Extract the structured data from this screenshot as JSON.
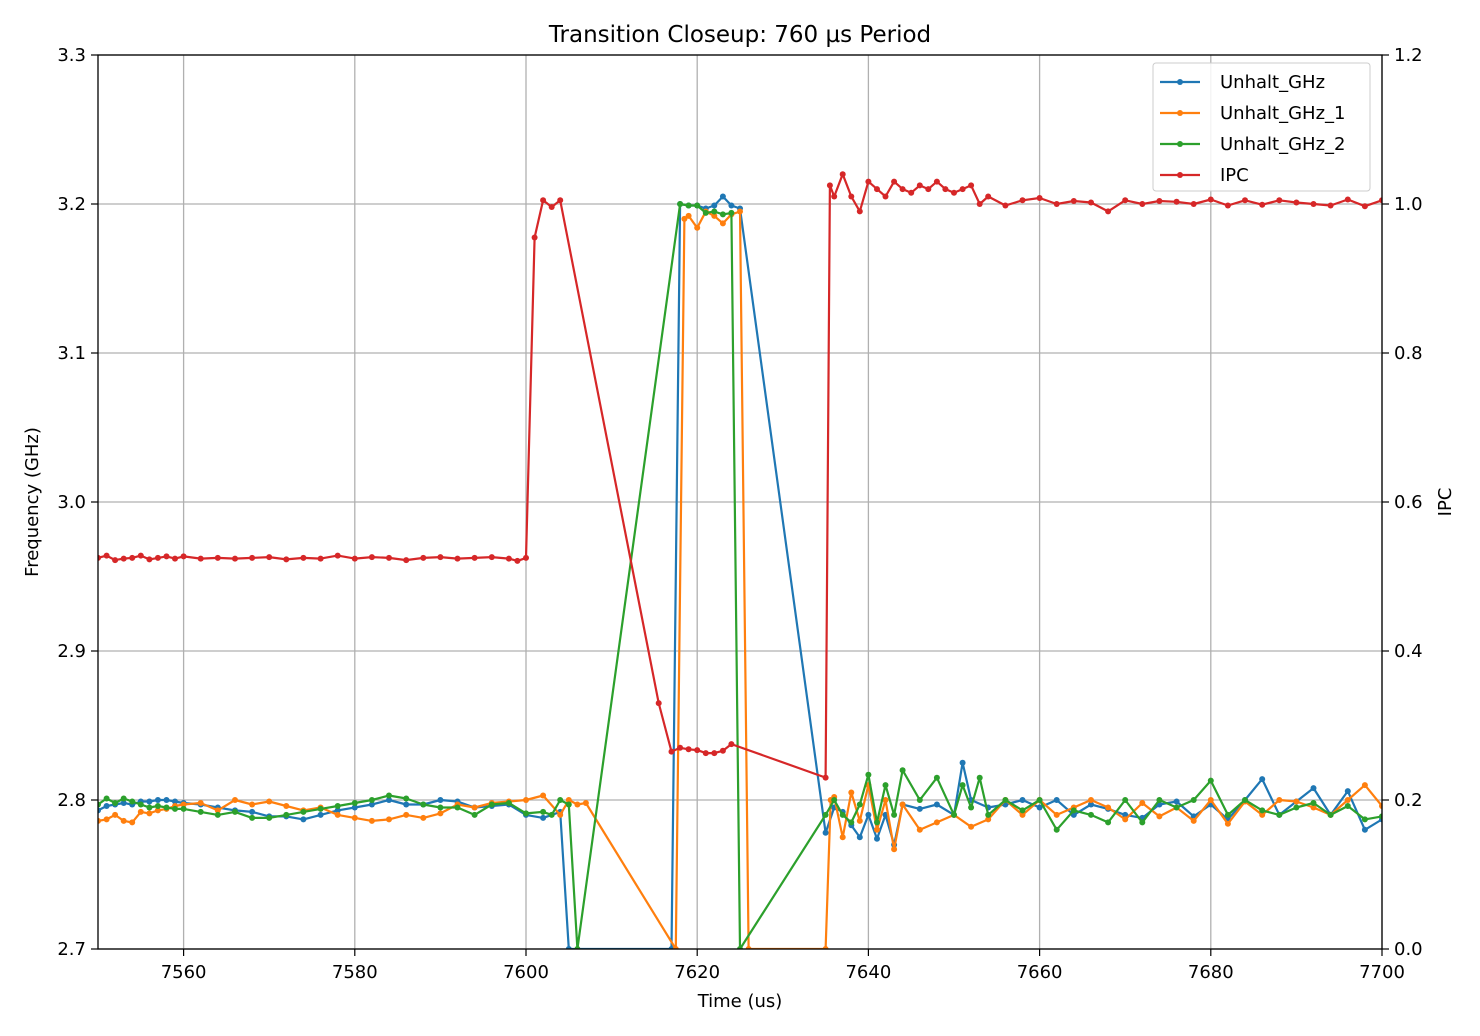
{
  "chart_data": {
    "type": "line",
    "title": "Transition Closeup: 760 µs Period",
    "xlabel": "Time (us)",
    "ylabel": "Frequency (GHz)",
    "y2label": "IPC",
    "xlim": [
      7550,
      7700
    ],
    "ylim": [
      2.7,
      3.3
    ],
    "y2lim": [
      0.0,
      1.2
    ],
    "xticks": [
      7560,
      7580,
      7600,
      7620,
      7640,
      7660,
      7680,
      7700
    ],
    "xtick_labels": [
      "7560",
      "7580",
      "7600",
      "7620",
      "7640",
      "7660",
      "7680",
      "7700"
    ],
    "yticks": [
      2.7,
      2.8,
      2.9,
      3.0,
      3.1,
      3.2,
      3.3
    ],
    "ytick_labels": [
      "2.7",
      "2.8",
      "2.9",
      "3.0",
      "3.1",
      "3.2",
      "3.3"
    ],
    "y2ticks": [
      0.0,
      0.2,
      0.4,
      0.6,
      0.8,
      1.0,
      1.2
    ],
    "y2tick_labels": [
      "0.0",
      "0.2",
      "0.4",
      "0.6",
      "0.8",
      "1.0",
      "1.2"
    ],
    "grid": true,
    "legend_position": "top-right",
    "series": [
      {
        "name": "Unhalt_GHz",
        "color": "#1f77b4",
        "axis": "left",
        "x": [
          7550,
          7551,
          7552,
          7553,
          7554,
          7555,
          7556,
          7557,
          7558,
          7559,
          7560,
          7562,
          7564,
          7566,
          7568,
          7570,
          7572,
          7574,
          7576,
          7578,
          7580,
          7582,
          7584,
          7586,
          7588,
          7590,
          7592,
          7594,
          7596,
          7598,
          7600,
          7602,
          7604,
          7605,
          7617,
          7618,
          7619,
          7620,
          7621,
          7622,
          7623,
          7624,
          7625,
          7635,
          7636,
          7637,
          7638,
          7639,
          7640,
          7641,
          7642,
          7643,
          7644,
          7646,
          7648,
          7650,
          7651,
          7652,
          7654,
          7656,
          7658,
          7660,
          7662,
          7664,
          7666,
          7668,
          7670,
          7672,
          7674,
          7676,
          7678,
          7680,
          7682,
          7684,
          7686,
          7688,
          7690,
          7692,
          7694,
          7696,
          7698,
          7700
        ],
        "y": [
          2.793,
          2.796,
          2.797,
          2.798,
          2.797,
          2.799,
          2.799,
          2.8,
          2.8,
          2.799,
          2.798,
          2.797,
          2.795,
          2.793,
          2.792,
          2.789,
          2.789,
          2.787,
          2.79,
          2.793,
          2.795,
          2.797,
          2.8,
          2.797,
          2.797,
          2.8,
          2.799,
          2.795,
          2.796,
          2.797,
          2.79,
          2.788,
          2.792,
          2.7,
          2.7,
          3.2,
          3.199,
          3.199,
          3.197,
          3.199,
          3.205,
          3.199,
          3.197,
          2.778,
          2.795,
          2.792,
          2.783,
          2.775,
          2.79,
          2.774,
          2.79,
          2.77,
          2.797,
          2.794,
          2.797,
          2.79,
          2.825,
          2.8,
          2.795,
          2.797,
          2.8,
          2.795,
          2.8,
          2.79,
          2.797,
          2.794,
          2.79,
          2.788,
          2.797,
          2.799,
          2.789,
          2.797,
          2.787,
          2.8,
          2.814,
          2.79,
          2.799,
          2.808,
          2.79,
          2.806,
          2.78,
          2.787
        ]
      },
      {
        "name": "Unhalt_GHz_1",
        "color": "#ff7f0e",
        "axis": "left",
        "x": [
          7550,
          7551,
          7552,
          7553,
          7554,
          7555,
          7556,
          7557,
          7558,
          7559,
          7560,
          7562,
          7564,
          7566,
          7568,
          7570,
          7572,
          7574,
          7576,
          7578,
          7580,
          7582,
          7584,
          7586,
          7588,
          7590,
          7592,
          7594,
          7596,
          7598,
          7600,
          7602,
          7604,
          7605,
          7606,
          7607,
          7617.5,
          7618.5,
          7619,
          7620,
          7621,
          7622,
          7623,
          7624,
          7625,
          7626,
          7635,
          7635.6,
          7636,
          7637,
          7638,
          7639,
          7640,
          7641,
          7642,
          7643,
          7644,
          7646,
          7648,
          7650,
          7652,
          7654,
          7656,
          7658,
          7660,
          7662,
          7664,
          7666,
          7668,
          7670,
          7672,
          7674,
          7676,
          7678,
          7680,
          7682,
          7684,
          7686,
          7688,
          7690,
          7692,
          7694,
          7696,
          7698,
          7700
        ],
        "y": [
          2.786,
          2.787,
          2.79,
          2.786,
          2.785,
          2.792,
          2.791,
          2.793,
          2.794,
          2.796,
          2.797,
          2.798,
          2.793,
          2.8,
          2.797,
          2.799,
          2.796,
          2.793,
          2.795,
          2.79,
          2.788,
          2.786,
          2.787,
          2.79,
          2.788,
          2.791,
          2.797,
          2.795,
          2.798,
          2.799,
          2.8,
          2.803,
          2.79,
          2.8,
          2.797,
          2.798,
          2.7,
          3.19,
          3.192,
          3.184,
          3.195,
          3.192,
          3.187,
          3.193,
          3.195,
          2.7,
          2.7,
          2.8,
          2.802,
          2.775,
          2.805,
          2.786,
          2.81,
          2.78,
          2.8,
          2.767,
          2.797,
          2.78,
          2.785,
          2.79,
          2.782,
          2.787,
          2.8,
          2.79,
          2.8,
          2.79,
          2.795,
          2.8,
          2.795,
          2.787,
          2.798,
          2.789,
          2.795,
          2.786,
          2.8,
          2.784,
          2.799,
          2.79,
          2.8,
          2.799,
          2.795,
          2.79,
          2.8,
          2.81,
          2.796
        ]
      },
      {
        "name": "Unhalt_GHz_2",
        "color": "#2ca02c",
        "axis": "left",
        "x": [
          7550,
          7551,
          7552,
          7553,
          7554,
          7555,
          7556,
          7557,
          7558,
          7559,
          7560,
          7562,
          7564,
          7566,
          7568,
          7570,
          7572,
          7574,
          7576,
          7578,
          7580,
          7582,
          7584,
          7586,
          7588,
          7590,
          7592,
          7594,
          7596,
          7598,
          7600,
          7602,
          7603,
          7604,
          7605,
          7606,
          7618,
          7619,
          7620,
          7621,
          7622,
          7623,
          7624,
          7625,
          7635,
          7636,
          7637,
          7638,
          7639,
          7640,
          7641,
          7642,
          7643,
          7644,
          7646,
          7648,
          7650,
          7651,
          7652,
          7653,
          7654,
          7656,
          7658,
          7660,
          7662,
          7664,
          7666,
          7668,
          7670,
          7672,
          7674,
          7676,
          7678,
          7680,
          7682,
          7684,
          7686,
          7688,
          7690,
          7692,
          7694,
          7696,
          7698,
          7700
        ],
        "y": [
          2.797,
          2.801,
          2.798,
          2.801,
          2.799,
          2.797,
          2.795,
          2.796,
          2.795,
          2.794,
          2.794,
          2.792,
          2.79,
          2.792,
          2.788,
          2.788,
          2.79,
          2.792,
          2.794,
          2.796,
          2.798,
          2.8,
          2.803,
          2.801,
          2.797,
          2.795,
          2.795,
          2.79,
          2.797,
          2.798,
          2.791,
          2.792,
          2.79,
          2.8,
          2.797,
          2.7,
          3.2,
          3.199,
          3.199,
          3.194,
          3.195,
          3.193,
          3.194,
          2.7,
          2.79,
          2.8,
          2.79,
          2.785,
          2.797,
          2.817,
          2.785,
          2.81,
          2.79,
          2.82,
          2.8,
          2.815,
          2.79,
          2.81,
          2.795,
          2.815,
          2.79,
          2.8,
          2.793,
          2.8,
          2.78,
          2.793,
          2.79,
          2.785,
          2.8,
          2.785,
          2.8,
          2.795,
          2.8,
          2.813,
          2.79,
          2.8,
          2.793,
          2.79,
          2.795,
          2.798,
          2.79,
          2.796,
          2.787,
          2.789
        ]
      },
      {
        "name": "IPC",
        "color": "#d62728",
        "axis": "right",
        "x": [
          7550,
          7551,
          7552,
          7553,
          7554,
          7555,
          7556,
          7557,
          7558,
          7559,
          7560,
          7562,
          7564,
          7566,
          7568,
          7570,
          7572,
          7574,
          7576,
          7578,
          7580,
          7582,
          7584,
          7586,
          7588,
          7590,
          7592,
          7594,
          7596,
          7598,
          7599,
          7600,
          7601,
          7602,
          7603,
          7604,
          7615.5,
          7617,
          7618,
          7619,
          7620,
          7621,
          7622,
          7623,
          7624,
          7635,
          7635.5,
          7636,
          7637,
          7638,
          7639,
          7640,
          7641,
          7642,
          7643,
          7644,
          7645,
          7646,
          7647,
          7648,
          7649,
          7650,
          7651,
          7652,
          7653,
          7654,
          7656,
          7658,
          7660,
          7662,
          7664,
          7666,
          7668,
          7670,
          7672,
          7674,
          7676,
          7678,
          7680,
          7682,
          7684,
          7686,
          7688,
          7690,
          7692,
          7694,
          7696,
          7698,
          7700
        ],
        "y": [
          0.525,
          0.528,
          0.522,
          0.524,
          0.525,
          0.528,
          0.523,
          0.525,
          0.527,
          0.524,
          0.527,
          0.524,
          0.525,
          0.524,
          0.525,
          0.526,
          0.523,
          0.525,
          0.524,
          0.528,
          0.524,
          0.526,
          0.525,
          0.522,
          0.525,
          0.526,
          0.524,
          0.525,
          0.526,
          0.524,
          0.521,
          0.525,
          0.955,
          1.005,
          0.996,
          1.005,
          0.33,
          0.265,
          0.27,
          0.268,
          0.267,
          0.263,
          0.263,
          0.266,
          0.275,
          0.23,
          1.025,
          1.01,
          1.04,
          1.01,
          0.99,
          1.03,
          1.02,
          1.01,
          1.03,
          1.02,
          1.015,
          1.025,
          1.02,
          1.03,
          1.02,
          1.015,
          1.02,
          1.025,
          1.0,
          1.01,
          0.998,
          1.005,
          1.008,
          1.0,
          1.004,
          1.002,
          0.99,
          1.005,
          1.0,
          1.004,
          1.003,
          1.0,
          1.006,
          0.998,
          1.005,
          0.999,
          1.005,
          1.002,
          1.0,
          0.998,
          1.006,
          0.997,
          1.005
        ]
      }
    ]
  }
}
